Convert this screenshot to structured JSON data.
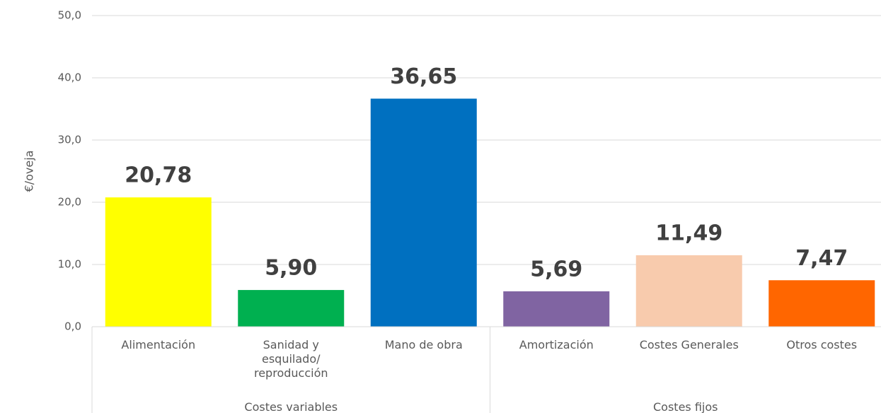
{
  "chart_data": {
    "type": "bar",
    "y_label": "€/oveja",
    "categories": [
      "Alimentación",
      "Sanidad y esquilado/ reproducción",
      "Mano de obra",
      "Amortización",
      "Costes Generales",
      "Otros costes"
    ],
    "values": [
      20.78,
      5.9,
      36.65,
      5.69,
      11.49,
      7.47
    ],
    "value_labels": [
      "20,78",
      "5,90",
      "36,65",
      "5,69",
      "11,49",
      "7,47"
    ],
    "colors": [
      "#ffff00",
      "#00b050",
      "#0070c0",
      "#8064a2",
      "#f8cbad",
      "#ff6600"
    ],
    "groups": [
      "Costes variables",
      "Costes fijos"
    ],
    "ylim": [
      0,
      50
    ],
    "yticks": [
      {
        "value": 0,
        "label": "0,0"
      },
      {
        "value": 10,
        "label": "10,0"
      },
      {
        "value": 20,
        "label": "20,0"
      },
      {
        "value": 30,
        "label": "30,0"
      },
      {
        "value": 40,
        "label": "40,0"
      },
      {
        "value": 50,
        "label": "50,0"
      }
    ],
    "grid": true
  }
}
